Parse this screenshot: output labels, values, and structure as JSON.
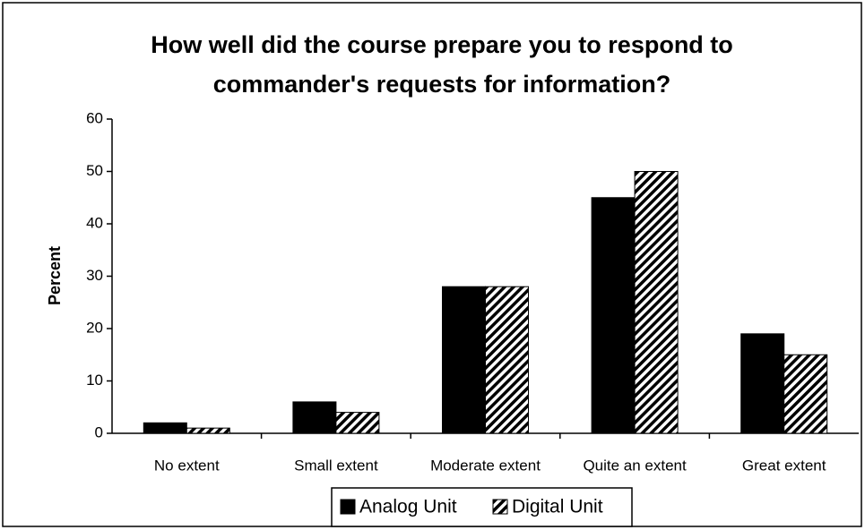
{
  "chart_data": {
    "type": "bar",
    "title": [
      "How well did the course prepare you to respond to",
      "commander's requests for information?"
    ],
    "y_label": "Percent",
    "categories": [
      "No extent",
      "Small extent",
      "Moderate extent",
      "Quite an extent",
      "Great extent"
    ],
    "series": [
      {
        "name": "Analog Unit",
        "color": "#000000",
        "pattern": "solid",
        "values": [
          2,
          6,
          28,
          45,
          19
        ]
      },
      {
        "name": "Digital Unit",
        "color": "#000000",
        "pattern": "diagonal",
        "values": [
          1,
          4,
          28,
          50,
          15
        ]
      }
    ],
    "ylim": [
      0,
      60
    ],
    "yticks": [
      0,
      10,
      20,
      30,
      40,
      50,
      60
    ],
    "grid": false,
    "legend": "bottom"
  }
}
